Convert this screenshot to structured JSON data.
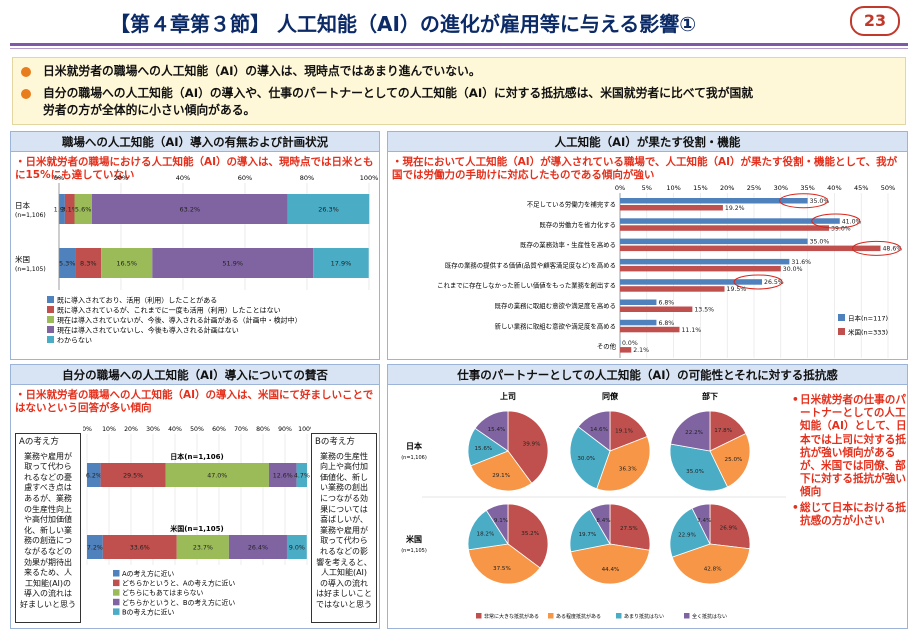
{
  "header": {
    "title": "【第４章第３節】 人工知能（AI）の進化が雇用等に与える影響①",
    "page_number": "23"
  },
  "summary": [
    "日米就労者の職場への人工知能（AI）の導入は、現時点ではあまり進んでいない。",
    "自分の職場への人工知能（AI）の導入や、仕事のパートナーとしての人工知能（AI）に対する抵抗感は、米国就労者に比べて我が国就",
    "労者の方が全体的に小さい傾向がある。"
  ],
  "colors": {
    "accent": "#7e5aa6",
    "panel_head": "#d8e4f3",
    "note_red": "#e4301c",
    "blue": "#4f81bd",
    "red": "#c0504d",
    "green": "#9bbb59",
    "purple": "#8064a2",
    "teal": "#4bacc6",
    "orange": "#f79646"
  },
  "chart_data": [
    {
      "id": "tl",
      "type": "bar",
      "orientation": "horizontal-stacked",
      "heading": "職場への人工知能（AI）導入の有無および計画状況",
      "note": "・日米就労者の職場における人工知能（AI）の導入は、現時点では日米ともに15%にも達していない",
      "xlim": [
        0,
        100
      ],
      "x_tick_labels": [
        "0%",
        "20%",
        "40%",
        "60%",
        "80%",
        "100%"
      ],
      "categories": [
        {
          "name": "日本",
          "sub": "(n=1,106)"
        },
        {
          "name": "米国",
          "sub": "(n=1,105)"
        }
      ],
      "series": [
        {
          "name": "既に導入されており、活用（利用）したことがある",
          "values": [
            1.9,
            5.3
          ]
        },
        {
          "name": "既に導入されているが、これまでに一度も活用（利用）したことはない",
          "values": [
            3.1,
            8.3
          ]
        },
        {
          "name": "現在は導入されていないが、今後、導入される計画がある（計画中・検討中）",
          "values": [
            5.6,
            16.5
          ]
        },
        {
          "name": "現在は導入されていないし、今後も導入される計画はない",
          "values": [
            63.2,
            51.9
          ]
        },
        {
          "name": "わからない",
          "values": [
            26.3,
            17.9
          ]
        }
      ],
      "labels": [
        [
          "1.9%",
          "3.1%",
          "5.6%",
          "63.2%",
          "26.3%"
        ],
        [
          "5.3%",
          "8.3%",
          "16.5%",
          "51.9%",
          "17.9%"
        ]
      ],
      "colors": [
        "#4f81bd",
        "#c0504d",
        "#9bbb59",
        "#8064a2",
        "#4bacc6"
      ]
    },
    {
      "id": "tr",
      "type": "bar",
      "orientation": "horizontal-grouped",
      "heading": "人工知能（AI）が果たす役割・機能",
      "note": "・現在において人工知能（AI）が導入されている職場で、人工知能（AI）が果たす役割・機能として、我が国では労働力の手助けに対応したものである傾向が強い",
      "xlim": [
        0,
        50
      ],
      "x_tick_labels": [
        "0%",
        "5%",
        "10%",
        "15%",
        "20%",
        "25%",
        "30%",
        "35%",
        "40%",
        "45%",
        "50%"
      ],
      "categories": [
        "不足している労働力を補完する",
        "既存の労働力を省力化する",
        "既存の業務効率・生産性を高める",
        "既存の業務の提供する価値(品質や顧客満足度など)を高める",
        "これまでに存在しなかった新しい価値をもった業務を創出する",
        "既存の業務に取組む意欲や満足度を高める",
        "新しい業務に取組む意欲や満足度を高める",
        "その他"
      ],
      "series": [
        {
          "name": "日本(n=117)",
          "values": [
            35.0,
            41.0,
            35.0,
            31.6,
            26.5,
            6.8,
            6.8,
            0.0
          ]
        },
        {
          "name": "米国(n=333)",
          "values": [
            19.2,
            39.0,
            48.6,
            30.0,
            19.5,
            13.5,
            11.1,
            2.1
          ]
        }
      ],
      "labels": [
        [
          "35.0%",
          "41.0%",
          "35.0%",
          "31.6%",
          "26.5%",
          "6.8%",
          "6.8%",
          "0.0%"
        ],
        [
          "19.2%",
          "39.0%",
          "48.6%",
          "30.0%",
          "19.5%",
          "13.5%",
          "11.1%",
          "2.1%"
        ]
      ],
      "colors": [
        "#4f81bd",
        "#c0504d"
      ]
    },
    {
      "id": "bl",
      "type": "bar",
      "orientation": "horizontal-stacked",
      "heading": "自分の職場への人工知能（AI）導入についての賛否",
      "note": "・日米就労者の職場への人工知能（AI）の導入は、米国にて好ましいことではないという回答が多い傾向",
      "xlim": [
        0,
        100
      ],
      "x_tick_labels": [
        "0%",
        "10%",
        "20%",
        "30%",
        "40%",
        "50%",
        "60%",
        "70%",
        "80%",
        "90%",
        "100%"
      ],
      "categories": [
        {
          "name": "日本(n=1,106)"
        },
        {
          "name": "米国(n=1,105)"
        }
      ],
      "series": [
        {
          "name": "Aの考え方に近い",
          "values": [
            6.2,
            7.2
          ]
        },
        {
          "name": "どちらかというと、Aの考え方に近い",
          "values": [
            29.5,
            33.6
          ]
        },
        {
          "name": "どちらにもあてはまらない",
          "values": [
            47.0,
            23.7
          ]
        },
        {
          "name": "どちらかというと、Bの考え方に近い",
          "values": [
            12.6,
            26.4
          ]
        },
        {
          "name": "Bの考え方に近い",
          "values": [
            4.7,
            9.0
          ]
        }
      ],
      "labels": [
        [
          "6.2%",
          "29.5%",
          "47.0%",
          "12.6%",
          "4.7%"
        ],
        [
          "7.2%",
          "33.6%",
          "23.7%",
          "26.4%",
          "9.0%"
        ]
      ],
      "colors": [
        "#4f81bd",
        "#c0504d",
        "#9bbb59",
        "#8064a2",
        "#4bacc6"
      ],
      "box_a": {
        "title": "Aの考え方",
        "body": [
          "業務や雇用が",
          "取って代わら",
          "れるなどの憂",
          "慮すべき点は",
          "あるが、業務",
          "の生産性向上",
          "や高付加価値",
          "化、新しい業",
          "務の創造につ",
          "ながるなどの",
          "効果が期待出",
          "来るため、人",
          "工知能(AI)の",
          "導入の流れは",
          "好ましいと思う"
        ]
      },
      "box_b": {
        "title": "Bの考え方",
        "body": [
          "業務の生産性",
          "向上や高付加",
          "価値化、新し",
          "い業務の創出",
          "につながる効",
          "果については",
          "喜ばしいが、",
          "業務や雇用が",
          "取って代わら",
          "れるなどの影",
          "響を考えると、",
          "人工知能(AI)",
          "の導入の流れ",
          "は好ましいこと",
          "ではないと思う"
        ]
      }
    },
    {
      "id": "br",
      "type": "pie",
      "heading": "仕事のパートナーとしての人工知能（AI）の可能性とそれに対する抵抗感",
      "columns": [
        "上司",
        "同僚",
        "部下"
      ],
      "rows": [
        {
          "name": "日本",
          "sub": "(n=1,106)"
        },
        {
          "name": "米国",
          "sub": "(n=1,105)"
        }
      ],
      "legend": [
        "非常に大きな抵抗がある",
        "ある程度抵抗がある",
        "あまり抵抗はない",
        "全く抵抗はない"
      ],
      "colors": [
        "#c0504d",
        "#f79646",
        "#4bacc6",
        "#8064a2"
      ],
      "pies": [
        {
          "row": 0,
          "col": 0,
          "values": [
            39.9,
            29.1,
            15.6,
            15.4
          ],
          "labels": [
            "39.9%",
            "29.1%",
            "15.6%",
            "15.4%"
          ]
        },
        {
          "row": 0,
          "col": 1,
          "values": [
            19.1,
            36.3,
            30.0,
            14.6
          ],
          "labels": [
            "19.1%",
            "36.3%",
            "30.0%",
            "14.6%"
          ]
        },
        {
          "row": 0,
          "col": 2,
          "values": [
            17.8,
            25.0,
            35.0,
            22.2
          ],
          "labels": [
            "17.8%",
            "25.0%",
            "35.0%",
            "22.2%"
          ]
        },
        {
          "row": 1,
          "col": 0,
          "values": [
            35.2,
            37.5,
            18.2,
            9.1
          ],
          "labels": [
            "35.2%",
            "37.5%",
            "18.2%",
            "9.1%"
          ]
        },
        {
          "row": 1,
          "col": 1,
          "values": [
            27.5,
            44.4,
            19.7,
            8.4
          ],
          "labels": [
            "27.5%",
            "44.4%",
            "19.7%",
            "8.4%"
          ]
        },
        {
          "row": 1,
          "col": 2,
          "values": [
            26.9,
            42.8,
            22.9,
            7.4
          ],
          "labels": [
            "26.9%",
            "42.8%",
            "22.9%",
            "7.4%"
          ]
        }
      ],
      "side_notes": [
        "日米就労者の仕事のパートナーとしての人工知能（AI）として、日本では上司に対する抵抗が強い傾向があるが、米国では同僚、部下に対する抵抗が強い傾向",
        "総じて日本における抵抗感の方が小さい"
      ]
    }
  ]
}
